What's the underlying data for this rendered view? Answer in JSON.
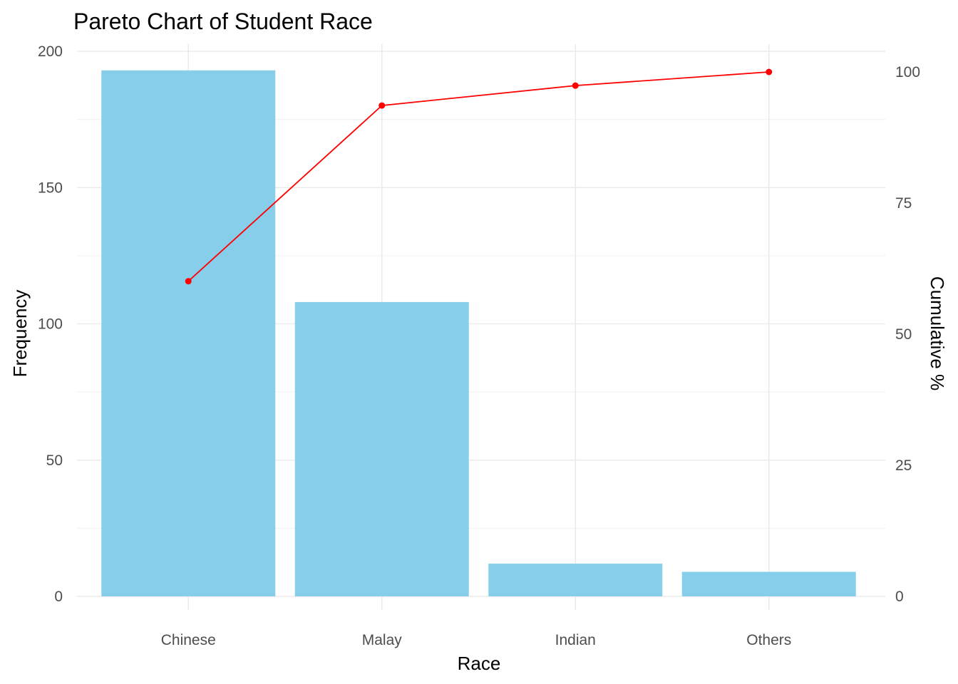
{
  "chart_data": {
    "type": "bar",
    "title": "Pareto Chart of Student Race",
    "xlabel": "Race",
    "ylabel": "Frequency",
    "y2label": "Cumulative %",
    "categories": [
      "Chinese",
      "Malay",
      "Indian",
      "Others"
    ],
    "series": [
      {
        "type": "bar",
        "values": [
          193,
          108,
          12,
          9
        ],
        "color": "#87CEEB"
      },
      {
        "type": "line",
        "axis": "right",
        "values": [
          60.1,
          93.6,
          97.4,
          100.0
        ],
        "color": "#FF0000"
      }
    ],
    "ylim": [
      0,
      200
    ],
    "y_ticks": [
      0,
      50,
      100,
      150,
      200
    ],
    "y2lim": [
      0,
      104
    ],
    "y2_ticks": [
      0,
      25,
      50,
      75,
      100
    ],
    "grid": true,
    "legend": "none"
  }
}
